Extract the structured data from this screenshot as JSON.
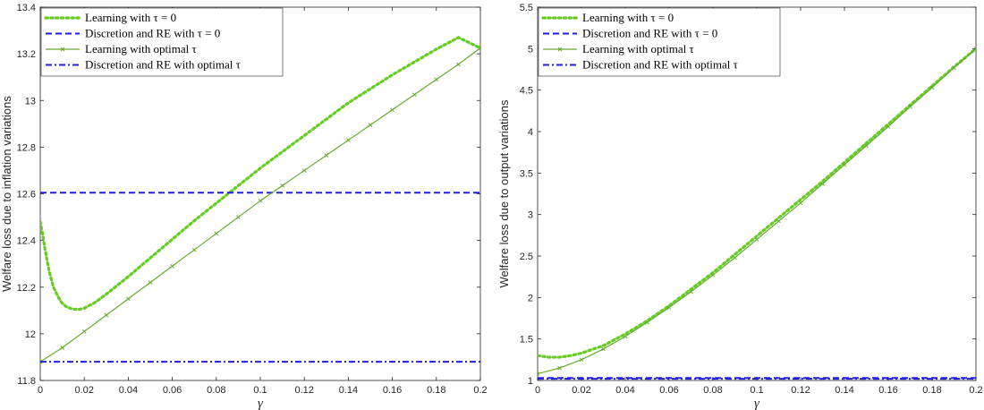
{
  "chart_data": [
    {
      "type": "line",
      "title": "",
      "xlabel": "γ",
      "ylabel": "Welfare loss due to inflation variations",
      "xlim": [
        0,
        0.2
      ],
      "ylim": [
        11.8,
        13.4
      ],
      "xticks": [
        "0",
        "0.02",
        "0.04",
        "0.06",
        "0.08",
        "0.1",
        "0.12",
        "0.14",
        "0.16",
        "0.18",
        "0.2"
      ],
      "yticks": [
        "11.8",
        "12",
        "12.2",
        "12.4",
        "12.6",
        "12.8",
        "13",
        "13.2",
        "13.4"
      ],
      "legend_position": "top-left",
      "series": [
        {
          "name": "Learning with τ = 0",
          "style": "dotted",
          "color": "#66cc22",
          "x": [
            0,
            0.001,
            0.002,
            0.004,
            0.006,
            0.008,
            0.01,
            0.012,
            0.015,
            0.018,
            0.02,
            0.025,
            0.03,
            0.04,
            0.05,
            0.06,
            0.07,
            0.08,
            0.09,
            0.1,
            0.11,
            0.12,
            0.13,
            0.14,
            0.15,
            0.16,
            0.17,
            0.18,
            0.19,
            0.2
          ],
          "values": [
            12.48,
            12.43,
            12.37,
            12.27,
            12.2,
            12.16,
            12.13,
            12.115,
            12.105,
            12.105,
            12.11,
            12.135,
            12.17,
            12.245,
            12.325,
            12.405,
            12.485,
            12.56,
            12.635,
            12.71,
            12.78,
            12.85,
            12.92,
            12.99,
            13.05,
            13.11,
            13.165,
            13.22,
            13.27,
            13.225
          ]
        },
        {
          "name": "Discretion and RE with τ = 0",
          "style": "dashed",
          "color": "#1f1fe6",
          "x": [
            0,
            0.2
          ],
          "values": [
            12.605,
            12.605
          ]
        },
        {
          "name": "Learning with optimal τ",
          "style": "solid-marker",
          "color": "#66aa33",
          "x": [
            0,
            0.01,
            0.02,
            0.03,
            0.04,
            0.05,
            0.06,
            0.07,
            0.08,
            0.09,
            0.1,
            0.11,
            0.12,
            0.13,
            0.14,
            0.15,
            0.16,
            0.17,
            0.18,
            0.19,
            0.2
          ],
          "values": [
            11.88,
            11.94,
            12.01,
            12.08,
            12.15,
            12.22,
            12.29,
            12.36,
            12.43,
            12.5,
            12.57,
            12.635,
            12.7,
            12.765,
            12.83,
            12.895,
            12.96,
            13.025,
            13.09,
            13.155,
            13.225
          ]
        },
        {
          "name": "Discretion and RE with optimal τ",
          "style": "dashdot",
          "color": "#1f1fe6",
          "x": [
            0,
            0.2
          ],
          "values": [
            11.88,
            11.88
          ]
        }
      ]
    },
    {
      "type": "line",
      "title": "",
      "xlabel": "γ",
      "ylabel": "Welfare loss due to output variations",
      "xlim": [
        0,
        0.2
      ],
      "ylim": [
        1,
        5.5
      ],
      "xticks": [
        "0",
        "0.02",
        "0.04",
        "0.06",
        "0.08",
        "0.1",
        "0.12",
        "0.14",
        "0.16",
        "0.18",
        "0.2"
      ],
      "yticks": [
        "1",
        "1.5",
        "2",
        "2.5",
        "3",
        "3.5",
        "4",
        "4.5",
        "5",
        "5.5"
      ],
      "legend_position": "top-left",
      "series": [
        {
          "name": "Learning with τ = 0",
          "style": "dotted",
          "color": "#66cc22",
          "x": [
            0,
            0.005,
            0.01,
            0.015,
            0.02,
            0.03,
            0.04,
            0.05,
            0.06,
            0.07,
            0.08,
            0.09,
            0.1,
            0.11,
            0.12,
            0.13,
            0.14,
            0.15,
            0.16,
            0.17,
            0.18,
            0.19,
            0.2
          ],
          "values": [
            1.3,
            1.28,
            1.28,
            1.3,
            1.33,
            1.42,
            1.56,
            1.72,
            1.9,
            2.1,
            2.3,
            2.52,
            2.74,
            2.96,
            3.18,
            3.4,
            3.63,
            3.86,
            4.09,
            4.32,
            4.55,
            4.78,
            5.0
          ]
        },
        {
          "name": "Discretion and RE with τ = 0",
          "style": "dashed",
          "color": "#1f1fe6",
          "x": [
            0,
            0.2
          ],
          "values": [
            1.03,
            1.03
          ]
        },
        {
          "name": "Learning with optimal τ",
          "style": "solid-marker",
          "color": "#66aa33",
          "x": [
            0,
            0.01,
            0.02,
            0.03,
            0.04,
            0.05,
            0.06,
            0.07,
            0.08,
            0.09,
            0.1,
            0.11,
            0.12,
            0.13,
            0.14,
            0.15,
            0.16,
            0.17,
            0.18,
            0.19,
            0.2
          ],
          "values": [
            1.08,
            1.15,
            1.25,
            1.38,
            1.53,
            1.7,
            1.88,
            2.07,
            2.27,
            2.48,
            2.7,
            2.92,
            3.14,
            3.37,
            3.6,
            3.83,
            4.06,
            4.3,
            4.53,
            4.77,
            5.0
          ]
        },
        {
          "name": "Discretion and RE with optimal τ",
          "style": "dashdot",
          "color": "#1f1fe6",
          "x": [
            0,
            0.2
          ],
          "values": [
            1.02,
            1.02
          ]
        }
      ]
    }
  ]
}
